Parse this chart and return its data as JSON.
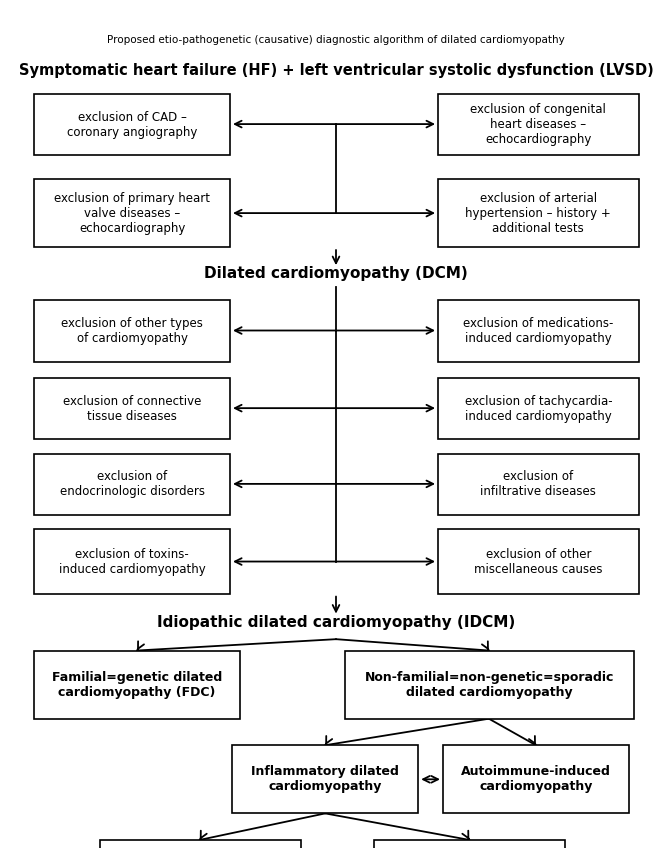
{
  "title_small": "Proposed etio-pathogenetic (causative) diagnostic algorithm of dilated cardiomyopathy",
  "title_main": "Symptomatic heart failure (HF) + left ventricular systolic dysfunction (LVSD)",
  "dcm_label": "Dilated cardiomyopathy (DCM)",
  "idcm_label": "Idiopathic dilated cardiomyopathy (IDCM)",
  "bg_color": "#ffffff",
  "box_edge_color": "#000000",
  "text_color": "#000000",
  "arrow_color": "#000000"
}
